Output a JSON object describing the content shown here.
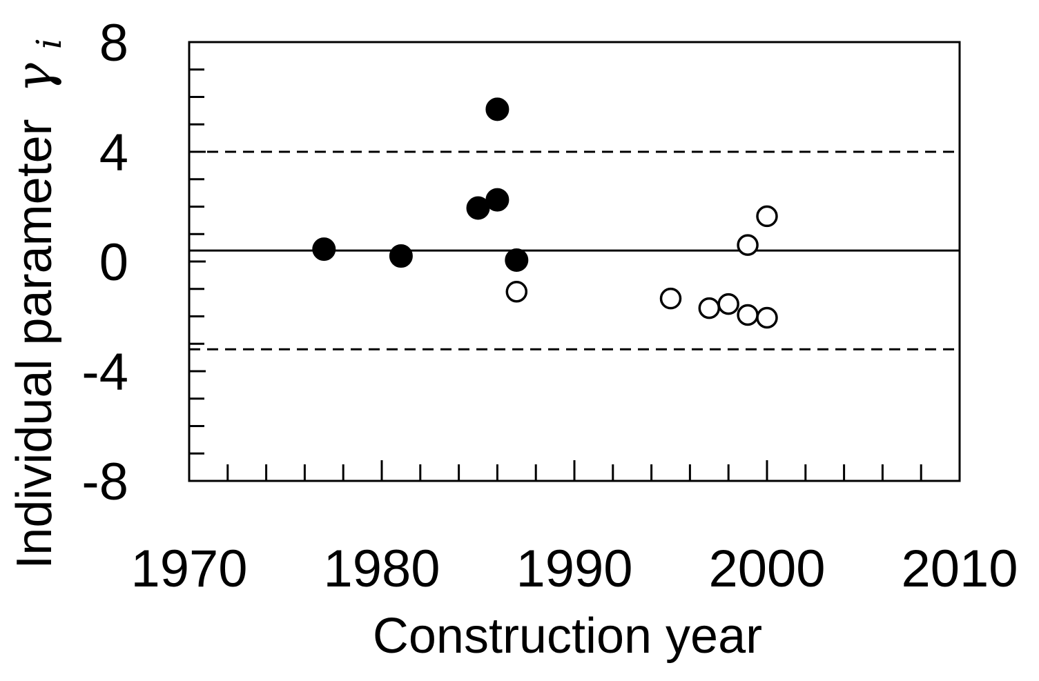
{
  "chart_data": {
    "type": "scatter",
    "xlabel": "Construction year",
    "ylabel": "Individual parameter",
    "ylabel_symbol": "γ",
    "ylabel_subscript": "i",
    "xlim": [
      1970,
      2010
    ],
    "ylim": [
      -8,
      8
    ],
    "x_ticks": [
      1970,
      1980,
      1990,
      2000,
      2010
    ],
    "x_tick_labels": [
      "1970",
      "1980",
      "1990",
      "2000",
      "2010"
    ],
    "x_minor_step": 2,
    "y_ticks": [
      -8,
      -4,
      0,
      4,
      8
    ],
    "y_tick_labels": [
      "-8",
      "-4",
      "0",
      "4",
      "8"
    ],
    "y_minor_step": 1,
    "grid": false,
    "reference_lines": [
      {
        "y": 0.4,
        "style": "solid"
      },
      {
        "y": 4.0,
        "style": "dashed"
      },
      {
        "y": -3.2,
        "style": "dashed"
      }
    ],
    "series": [
      {
        "marker": "filled-circle",
        "color": "#000000",
        "points": [
          {
            "x": 1977.0,
            "y": 0.45
          },
          {
            "x": 1981.0,
            "y": 0.2
          },
          {
            "x": 1985.0,
            "y": 1.95
          },
          {
            "x": 1986.0,
            "y": 2.25
          },
          {
            "x": 1986.0,
            "y": 5.55
          },
          {
            "x": 1987.0,
            "y": 0.05
          }
        ]
      },
      {
        "marker": "open-circle",
        "color": "#000000",
        "points": [
          {
            "x": 1987.0,
            "y": -1.1
          },
          {
            "x": 1995.0,
            "y": -1.35
          },
          {
            "x": 1997.0,
            "y": -1.7
          },
          {
            "x": 1998.0,
            "y": -1.55
          },
          {
            "x": 1999.0,
            "y": -1.95
          },
          {
            "x": 1999.0,
            "y": 0.6
          },
          {
            "x": 2000.0,
            "y": -2.05
          },
          {
            "x": 2000.0,
            "y": 1.65
          }
        ]
      }
    ]
  }
}
